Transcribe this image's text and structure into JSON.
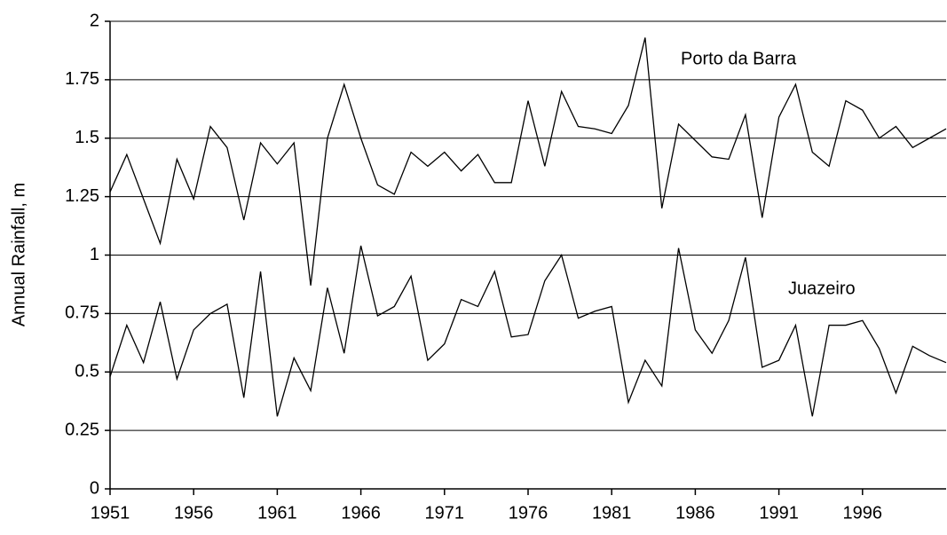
{
  "chart_data": {
    "type": "line",
    "y_label": "Annual Rainfall, m",
    "x": [
      1951,
      1952,
      1953,
      1954,
      1955,
      1956,
      1957,
      1958,
      1959,
      1960,
      1961,
      1962,
      1963,
      1964,
      1965,
      1966,
      1967,
      1968,
      1969,
      1970,
      1971,
      1972,
      1973,
      1974,
      1975,
      1976,
      1977,
      1978,
      1979,
      1980,
      1981,
      1982,
      1983,
      1984,
      1985,
      1986,
      1987,
      1988,
      1989,
      1990,
      1991,
      1992,
      1993,
      1994,
      1995,
      1996,
      1997,
      1998,
      1999,
      2000,
      2001
    ],
    "series": [
      {
        "name": "Porto da Barra",
        "color": "#000000",
        "values": [
          1.27,
          1.43,
          1.24,
          1.05,
          1.41,
          1.24,
          1.55,
          1.46,
          1.15,
          1.48,
          1.39,
          1.48,
          0.87,
          1.5,
          1.73,
          1.5,
          1.3,
          1.26,
          1.44,
          1.38,
          1.44,
          1.36,
          1.43,
          1.31,
          1.31,
          1.66,
          1.38,
          1.7,
          1.55,
          1.54,
          1.52,
          1.64,
          1.93,
          1.2,
          1.56,
          1.49,
          1.42,
          1.41,
          1.6,
          1.16,
          1.59,
          1.73,
          1.44,
          1.38,
          1.66,
          1.62,
          1.5,
          1.55,
          1.46,
          1.5,
          1.54
        ]
      },
      {
        "name": "Juazeiro",
        "color": "#000000",
        "values": [
          0.48,
          0.7,
          0.54,
          0.8,
          0.47,
          0.68,
          0.75,
          0.79,
          0.39,
          0.93,
          0.31,
          0.56,
          0.42,
          0.86,
          0.58,
          1.04,
          0.74,
          0.78,
          0.91,
          0.55,
          0.62,
          0.81,
          0.78,
          0.93,
          0.65,
          0.66,
          0.89,
          1.0,
          0.73,
          0.76,
          0.78,
          0.37,
          0.55,
          0.44,
          1.03,
          0.68,
          0.58,
          0.72,
          0.99,
          0.52,
          0.55,
          0.7,
          0.31,
          0.7,
          0.7,
          0.72,
          0.6,
          0.41,
          0.61,
          0.57,
          0.54
        ]
      }
    ],
    "xlim": [
      1951,
      2001
    ],
    "xticks": [
      1951,
      1956,
      1961,
      1966,
      1971,
      1976,
      1981,
      1986,
      1991,
      1996
    ],
    "ylim": [
      0,
      2
    ],
    "yticks": [
      0,
      0.25,
      0.5,
      0.75,
      1,
      1.25,
      1.5,
      1.75,
      2
    ],
    "grid": true
  }
}
